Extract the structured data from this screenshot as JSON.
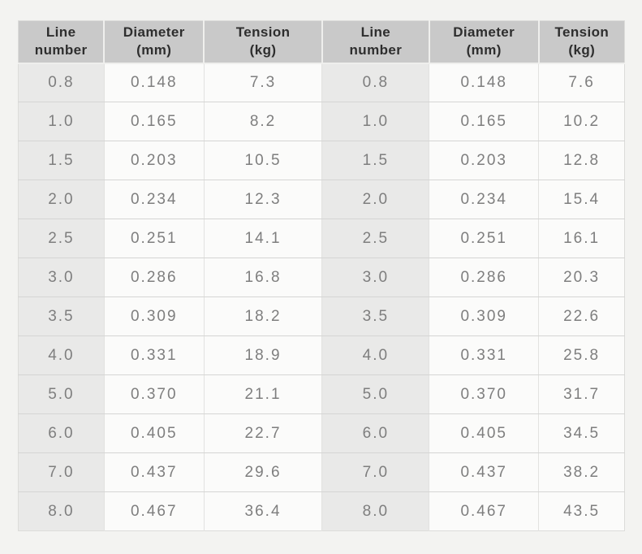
{
  "page": {
    "background": "#f3f3f1"
  },
  "colors": {
    "header_bg": "#c9c9c9",
    "header_text": "#2e2e2e",
    "shaded_col_bg": "#e9e9e8",
    "cell_bg": "#fbfbfa",
    "row_border": "#d5d5d4",
    "col_border": "#e2e2e0",
    "cell_text": "#7e7e7e"
  },
  "chart_data": {
    "type": "table",
    "title": "",
    "columns": [
      "Line number",
      "Diameter (mm)",
      "Tension (kg)",
      "Line number",
      "Diameter (mm)",
      "Tension (kg)"
    ],
    "header_lines": [
      [
        "Line",
        "number"
      ],
      [
        "Diameter",
        "(mm)"
      ],
      [
        "Tension",
        "(kg)"
      ],
      [
        "Line",
        "number"
      ],
      [
        "Diameter",
        "(mm)"
      ],
      [
        "Tension",
        "(kg)"
      ]
    ],
    "shaded_column_indexes": [
      0,
      3
    ],
    "rows": [
      [
        "0.8",
        "0.148",
        "7.3",
        "0.8",
        "0.148",
        "7.6"
      ],
      [
        "1.0",
        "0.165",
        "8.2",
        "1.0",
        "0.165",
        "10.2"
      ],
      [
        "1.5",
        "0.203",
        "10.5",
        "1.5",
        "0.203",
        "12.8"
      ],
      [
        "2.0",
        "0.234",
        "12.3",
        "2.0",
        "0.234",
        "15.4"
      ],
      [
        "2.5",
        "0.251",
        "14.1",
        "2.5",
        "0.251",
        "16.1"
      ],
      [
        "3.0",
        "0.286",
        "16.8",
        "3.0",
        "0.286",
        "20.3"
      ],
      [
        "3.5",
        "0.309",
        "18.2",
        "3.5",
        "0.309",
        "22.6"
      ],
      [
        "4.0",
        "0.331",
        "18.9",
        "4.0",
        "0.331",
        "25.8"
      ],
      [
        "5.0",
        "0.370",
        "21.1",
        "5.0",
        "0.370",
        "31.7"
      ],
      [
        "6.0",
        "0.405",
        "22.7",
        "6.0",
        "0.405",
        "34.5"
      ],
      [
        "7.0",
        "0.437",
        "29.6",
        "7.0",
        "0.437",
        "38.2"
      ],
      [
        "8.0",
        "0.467",
        "36.4",
        "8.0",
        "0.467",
        "43.5"
      ]
    ]
  }
}
